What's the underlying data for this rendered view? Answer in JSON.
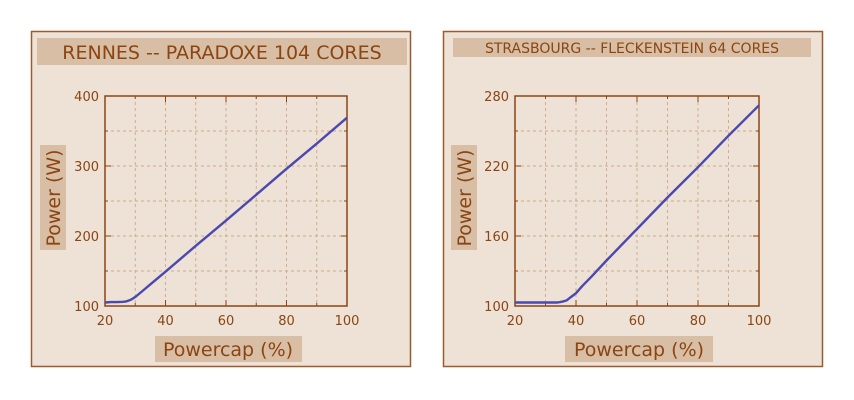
{
  "chart_data": [
    {
      "type": "line",
      "title": "RENNES -- PARADOXE 104 CORES",
      "xlabel": "Powercap (%)",
      "ylabel": "Power (W)",
      "xlim": [
        20,
        100
      ],
      "ylim": [
        100,
        400
      ],
      "xticks": [
        20,
        40,
        60,
        80,
        100
      ],
      "yticks": [
        100,
        200,
        300,
        400
      ],
      "grid": true,
      "series": [
        {
          "color": "#4b48b0",
          "x": [
            20,
            22,
            24,
            26,
            27,
            28,
            29,
            30,
            32,
            35,
            40,
            50,
            60,
            70,
            80,
            90,
            100
          ],
          "y": [
            105,
            105.5,
            105.5,
            106,
            106.5,
            108,
            110,
            113,
            120,
            131,
            149,
            186,
            222,
            259,
            296,
            332,
            369
          ]
        }
      ]
    },
    {
      "type": "line",
      "title": "STRASBOURG -- FLECKENSTEIN 64 CORES",
      "xlabel": "Powercap (%)",
      "ylabel": "Power (W)",
      "xlim": [
        20,
        100
      ],
      "ylim": [
        100,
        280
      ],
      "xticks": [
        20,
        40,
        60,
        80,
        100
      ],
      "yticks": [
        100,
        160,
        220,
        280
      ],
      "grid": true,
      "series": [
        {
          "color": "#4b48b0",
          "x": [
            20,
            25,
            30,
            34,
            35,
            36,
            37,
            38,
            39,
            40,
            42,
            45,
            50,
            60,
            70,
            80,
            90,
            100
          ],
          "y": [
            103,
            103,
            103,
            103,
            103.5,
            104,
            105,
            107,
            109,
            111,
            117,
            125,
            139,
            166,
            193,
            219,
            246,
            272
          ]
        }
      ]
    }
  ]
}
